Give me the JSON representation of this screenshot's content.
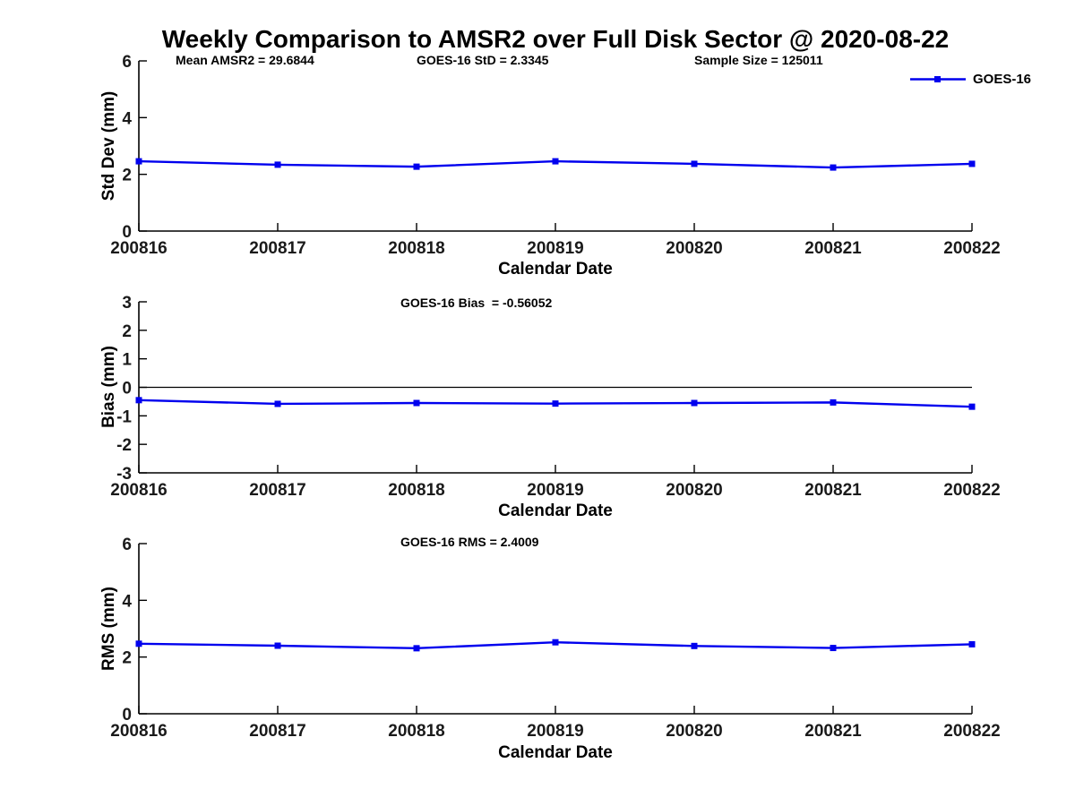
{
  "page": {
    "title": "Weekly Comparison to AMSR2 over Full Disk Sector @ 2020-08-22"
  },
  "colors": {
    "line": "#0000ee",
    "axis": "#000000"
  },
  "chart_data": [
    {
      "type": "line",
      "title": "",
      "categories": [
        "200816",
        "200817",
        "200818",
        "200819",
        "200820",
        "200821",
        "200822"
      ],
      "series": [
        {
          "name": "GOES-16",
          "values": [
            2.46,
            2.34,
            2.27,
            2.46,
            2.37,
            2.24,
            2.37
          ]
        }
      ],
      "xlabel": "Calendar Date",
      "ylabel": "Std Dev (mm)",
      "ylim": [
        0,
        6
      ],
      "yticks": [
        0,
        2,
        4,
        6
      ],
      "grid": false,
      "zero_line": false,
      "marker": "square",
      "line_color": "#0000ee",
      "legend": {
        "label": "GOES-16",
        "position": "top-right-outside"
      },
      "annotations": [
        "Mean AMSR2 = 29.6844",
        "GOES-16 StD = 2.3345",
        "Sample Size = 125011"
      ]
    },
    {
      "type": "line",
      "title": "",
      "categories": [
        "200816",
        "200817",
        "200818",
        "200819",
        "200820",
        "200821",
        "200822"
      ],
      "series": [
        {
          "name": "GOES-16",
          "values": [
            -0.45,
            -0.58,
            -0.55,
            -0.57,
            -0.55,
            -0.53,
            -0.68
          ]
        }
      ],
      "xlabel": "Calendar Date",
      "ylabel": "Bias (mm)",
      "ylim": [
        -3,
        3
      ],
      "yticks": [
        -3,
        -2,
        -1,
        0,
        1,
        2,
        3
      ],
      "grid": false,
      "zero_line": true,
      "marker": "square",
      "line_color": "#0000ee",
      "annotations": [
        "GOES-16 Bias  = -0.56052"
      ]
    },
    {
      "type": "line",
      "title": "",
      "categories": [
        "200816",
        "200817",
        "200818",
        "200819",
        "200820",
        "200821",
        "200822"
      ],
      "series": [
        {
          "name": "GOES-16",
          "values": [
            2.47,
            2.4,
            2.31,
            2.52,
            2.39,
            2.32,
            2.45
          ]
        }
      ],
      "xlabel": "Calendar Date",
      "ylabel": "RMS (mm)",
      "ylim": [
        0,
        6
      ],
      "yticks": [
        0,
        2,
        4,
        6
      ],
      "grid": false,
      "zero_line": false,
      "marker": "square",
      "line_color": "#0000ee",
      "annotations": [
        "GOES-16 RMS = 2.4009"
      ]
    }
  ]
}
